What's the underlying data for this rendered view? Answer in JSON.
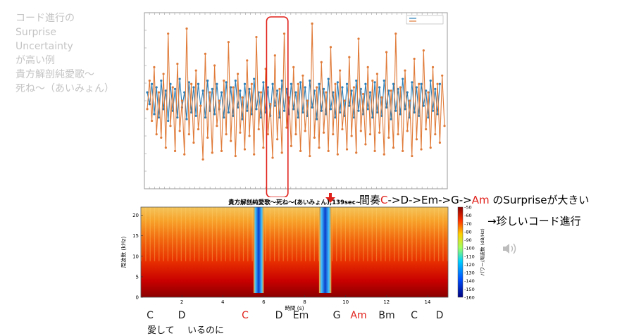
{
  "slide": {
    "title_lines": [
      "コード進行の",
      "Surprise",
      "Uncertainty",
      "が高い例",
      "貴方解剖純愛歌～",
      "死ね～（あいみょん）"
    ]
  },
  "annotation": {
    "prefix": "間奏",
    "chords": [
      {
        "text": "C",
        "red": true
      },
      {
        "text": "->D->Em->G->",
        "red": false
      },
      {
        "text": "Am",
        "red": true
      },
      {
        "text": " のSurpriseが大きい",
        "red": false
      }
    ],
    "second_line": "→珍しいコード進行"
  },
  "chord_labels": [
    {
      "text": "C",
      "red": false
    },
    {
      "text": "D",
      "red": false
    },
    {
      "text": "C",
      "red": true
    },
    {
      "text": "D",
      "red": false
    },
    {
      "text": "Em",
      "red": false
    },
    {
      "text": "G",
      "red": false
    },
    {
      "text": "Am",
      "red": true
    },
    {
      "text": "Bm",
      "red": false
    },
    {
      "text": "C",
      "red": false
    },
    {
      "text": "D",
      "red": false
    }
  ],
  "lyrics": [
    "愛して",
    "いるのに"
  ],
  "colors": {
    "surprise": "#2c7fb8",
    "uncertainty": "#e07b39",
    "highlight": "#e0201a"
  },
  "chart_data": [
    {
      "type": "line",
      "series": [
        {
          "name": "",
          "values": [
            0.45,
            0.62,
            0.38,
            0.7,
            0.3,
            0.55,
            0.28,
            0.66,
            0.22,
            0.9,
            0.35,
            0.58,
            0.2,
            0.72,
            0.32,
            0.5,
            0.18,
            0.93,
            0.3,
            0.6,
            0.25,
            0.68,
            0.33,
            0.47,
            0.15,
            0.78,
            0.28,
            0.55,
            0.19,
            0.71,
            0.35,
            0.5,
            0.2,
            0.62,
            0.3,
            0.85,
            0.26,
            0.58,
            0.17,
            0.66,
            0.31,
            0.52,
            0.21,
            0.74,
            0.29,
            0.6,
            0.18,
            0.88,
            0.33,
            0.55,
            0.22,
            0.69,
            0.3,
            0.48,
            0.16,
            0.77,
            0.27,
            0.57,
            0.19,
            0.9,
            0.34,
            0.52,
            0.23,
            0.7,
            0.3,
            0.6,
            0.2,
            0.65,
            0.32,
            0.5,
            0.17,
            0.96,
            0.28,
            0.58,
            0.22,
            0.73,
            0.31,
            0.55,
            0.2,
            0.82,
            0.3,
            0.6,
            0.18,
            0.68,
            0.33,
            0.5,
            0.21,
            0.76,
            0.29,
            0.58,
            0.19,
            0.87,
            0.32,
            0.54,
            0.24,
            0.7,
            0.3,
            0.62,
            0.2,
            0.66,
            0.31,
            0.52,
            0.18,
            0.79,
            0.28,
            0.56,
            0.22,
            0.9,
            0.3,
            0.58,
            0.2,
            0.68,
            0.32,
            0.5,
            0.17,
            0.75,
            0.27,
            0.6,
            0.21,
            0.8,
            0.33,
            0.55,
            0.22,
            0.7,
            0.3,
            0.6,
            0.25,
            0.65,
            0.35
          ]
        },
        {
          "name": "",
          "values": [
            0.55,
            0.48,
            0.6,
            0.42,
            0.58,
            0.4,
            0.62,
            0.45,
            0.56,
            0.38,
            0.6,
            0.44,
            0.57,
            0.4,
            0.63,
            0.46,
            0.55,
            0.39,
            0.61,
            0.43,
            0.58,
            0.41,
            0.6,
            0.47,
            0.56,
            0.4,
            0.62,
            0.44,
            0.57,
            0.42,
            0.6,
            0.45,
            0.55,
            0.4,
            0.61,
            0.43,
            0.58,
            0.41,
            0.62,
            0.46,
            0.56,
            0.39,
            0.6,
            0.44,
            0.57,
            0.42,
            0.63,
            0.45,
            0.55,
            0.4,
            0.61,
            0.43,
            0.58,
            0.41,
            0.6,
            0.47,
            0.56,
            0.4,
            0.62,
            0.44,
            0.57,
            0.42,
            0.6,
            0.45,
            0.55,
            0.4,
            0.61,
            0.43,
            0.58,
            0.41,
            0.62,
            0.46,
            0.56,
            0.39,
            0.6,
            0.44,
            0.57,
            0.42,
            0.63,
            0.45,
            0.55,
            0.4,
            0.61,
            0.43,
            0.58,
            0.41,
            0.6,
            0.47,
            0.56,
            0.4,
            0.62,
            0.44,
            0.57,
            0.42,
            0.6,
            0.45,
            0.55,
            0.4,
            0.61,
            0.43,
            0.58,
            0.41,
            0.62,
            0.46,
            0.56,
            0.39,
            0.6,
            0.44,
            0.57,
            0.42,
            0.63,
            0.45,
            0.55,
            0.4,
            0.61,
            0.43,
            0.58,
            0.41,
            0.6,
            0.47,
            0.56,
            0.4,
            0.62,
            0.44,
            0.57,
            0.42,
            0.6
          ]
        }
      ],
      "highlight_range": [
        52,
        60
      ],
      "ylim": [
        0,
        1
      ]
    },
    {
      "type": "heatmap",
      "title": "貴方解剖純愛歌～死ね～(あいみょん),139sec~",
      "xlabel": "時間 (s)",
      "ylabel": "周波数 (kHz)",
      "x_ticks": [
        2,
        4,
        6,
        8,
        10,
        12,
        14
      ],
      "y_ticks": [
        0,
        5,
        10,
        15,
        20
      ],
      "xlim": [
        0,
        15
      ],
      "ylim": [
        0,
        22
      ],
      "colorbar_label": "パワー/周波数 (dB/Hz)",
      "colorbar_ticks": [
        -50,
        -60,
        -70,
        -80,
        -90,
        -100,
        -110,
        -120,
        -130,
        -140,
        -150,
        -160
      ],
      "colorbar_range": [
        -160,
        -50
      ],
      "quiet_segments": [
        [
          5.5,
          6.0
        ],
        [
          8.7,
          9.3
        ]
      ]
    }
  ]
}
